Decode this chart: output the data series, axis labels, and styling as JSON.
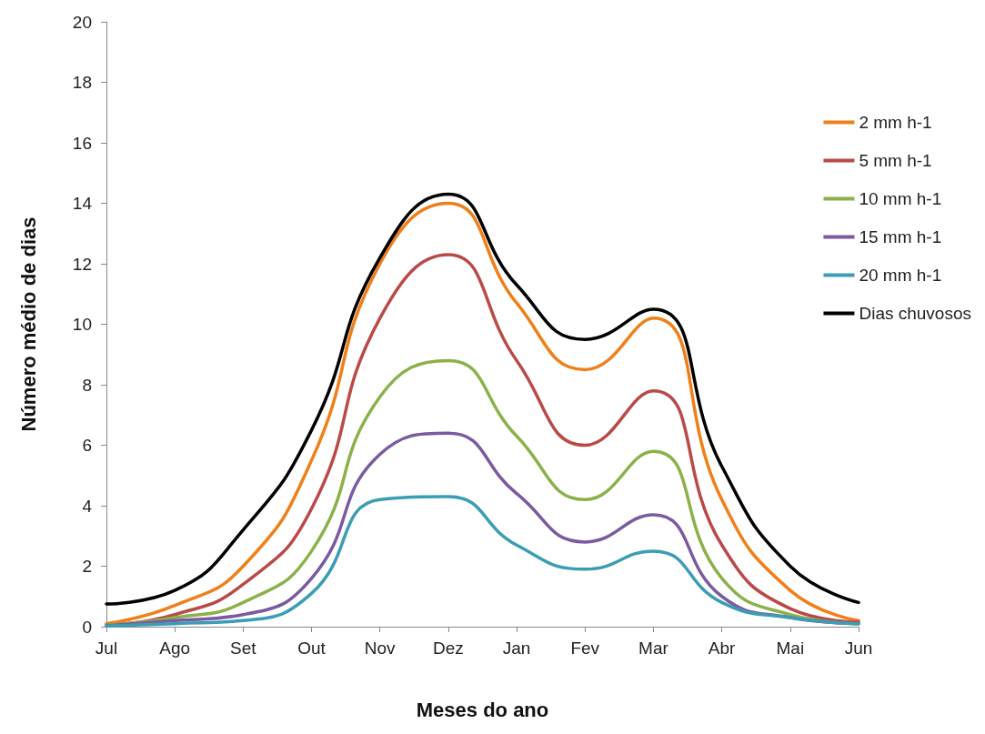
{
  "chart_data": {
    "type": "line",
    "xlabel": "Meses do ano",
    "ylabel": "Número médio de dias",
    "categories": [
      "Jul",
      "Ago",
      "Set",
      "Out",
      "Nov",
      "Dez",
      "Jan",
      "Fev",
      "Mar",
      "Abr",
      "Mai",
      "Jun"
    ],
    "ylim": [
      0,
      20
    ],
    "yticks": [
      0,
      2,
      4,
      6,
      8,
      10,
      12,
      14,
      16,
      18,
      20
    ],
    "grid": false,
    "legend": "right",
    "marker": "none",
    "line_style": "solid",
    "series": [
      {
        "name": "2 mm h-1",
        "color": "#f07f1a",
        "values": [
          0.1,
          0.7,
          2.0,
          5.5,
          12.0,
          14.0,
          10.7,
          8.5,
          10.2,
          4.2,
          1.2,
          0.2
        ]
      },
      {
        "name": "5 mm h-1",
        "color": "#b94a48",
        "values": [
          0.05,
          0.4,
          1.4,
          3.9,
          10.2,
          12.3,
          8.8,
          6.0,
          7.8,
          2.7,
          0.6,
          0.15
        ]
      },
      {
        "name": "10 mm h-1",
        "color": "#8cb04a",
        "values": [
          0.05,
          0.3,
          0.8,
          2.5,
          7.6,
          8.8,
          6.3,
          4.2,
          5.8,
          1.6,
          0.4,
          0.1
        ]
      },
      {
        "name": "15 mm h-1",
        "color": "#7a5aa0",
        "values": [
          0.03,
          0.2,
          0.4,
          1.6,
          5.7,
          6.4,
          4.4,
          2.8,
          3.7,
          1.0,
          0.3,
          0.1
        ]
      },
      {
        "name": "20 mm h-1",
        "color": "#3b9db5",
        "values": [
          0.02,
          0.1,
          0.2,
          1.1,
          4.2,
          4.3,
          2.7,
          1.9,
          2.5,
          0.8,
          0.3,
          0.1
        ]
      },
      {
        "name": "Dias chuvosos",
        "color": "#000000",
        "values": [
          0.75,
          1.2,
          3.2,
          6.5,
          12.2,
          14.3,
          11.3,
          9.5,
          10.5,
          5.3,
          2.0,
          0.8
        ]
      }
    ]
  }
}
